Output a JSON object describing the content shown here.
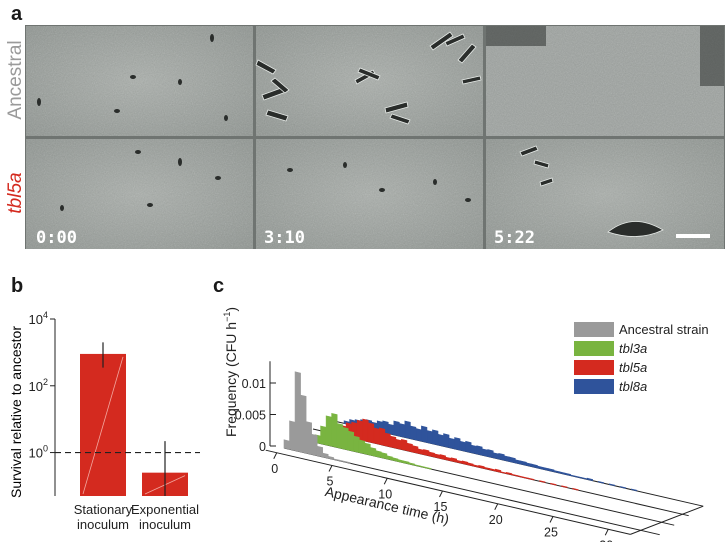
{
  "panel_a": {
    "letter": "a",
    "row_labels": [
      {
        "text": "Ancestral",
        "color": "#9a9a9a"
      },
      {
        "text": "tbl5a",
        "color": "#d42a1f"
      }
    ],
    "time_stamps": [
      "0:00",
      "3:10",
      "5:22"
    ]
  },
  "panel_b": {
    "letter": "b"
  },
  "panel_c": {
    "letter": "c"
  },
  "chart_data": [
    {
      "type": "bar",
      "panel": "b",
      "ylabel": "Survival relative to ancestor",
      "yscale": "log10",
      "ylim": [
        0.05,
        10000
      ],
      "yticks": [
        {
          "base": "10",
          "exp": "0",
          "value": 1
        },
        {
          "base": "10",
          "exp": "2",
          "value": 100
        },
        {
          "base": "10",
          "exp": "4",
          "value": 10000
        }
      ],
      "categories": [
        {
          "line1": "Stationary",
          "line2": "inoculum"
        },
        {
          "line1": "Exponential",
          "line2": "inoculum"
        }
      ],
      "values": [
        900,
        0.25
      ],
      "error_upper": [
        2000,
        2.2
      ],
      "error_lower": [
        350,
        0.05
      ],
      "reference_line": 1,
      "bar_color": "#d42a1f"
    },
    {
      "type": "histogram-3d",
      "panel": "c",
      "ylabel": "Frequency (CFU h",
      "ylabel_sup": "−1",
      "ylabel_close": ")",
      "xlabel": "Appearance time (h)",
      "yticks": [
        "0",
        "0.005",
        "0.01"
      ],
      "xticks": [
        "0",
        "5",
        "10",
        "15",
        "20",
        "25",
        "30"
      ],
      "xlim": [
        0,
        30
      ],
      "legend_position": "top-right",
      "series": [
        {
          "name": "Ancestral strain",
          "italic": false,
          "color": "#9a9a9a",
          "bin_width_h": 0.5,
          "x": [
            0.5,
            1.0,
            1.5,
            2.0,
            2.5,
            3.0,
            3.5,
            4.0,
            4.5,
            5.0,
            5.5,
            6.0
          ],
          "y": [
            0.0013,
            0.0045,
            0.0125,
            0.009,
            0.005,
            0.0032,
            0.0015,
            0.0006,
            0.0003,
            0.0001,
            0.0001,
            0.0001
          ]
        },
        {
          "name": "tbl3a",
          "italic": true,
          "color": "#79b440",
          "bin_width_h": 0.5,
          "x": [
            1.5,
            2.0,
            2.5,
            3.0,
            3.5,
            4.0,
            4.5,
            5.0,
            5.5,
            6.0,
            6.5,
            7.0,
            7.5,
            8.0,
            8.5,
            9.0,
            9.5,
            10.0,
            10.5,
            11.0,
            11.5,
            12.0
          ],
          "y": [
            0.0004,
            0.0012,
            0.0028,
            0.0046,
            0.0052,
            0.0038,
            0.0034,
            0.003,
            0.0024,
            0.002,
            0.0017,
            0.0012,
            0.0009,
            0.0008,
            0.0005,
            0.0004,
            0.0003,
            0.0003,
            0.0002,
            0.0001,
            0.0001,
            0.0001
          ]
        },
        {
          "name": "tbl5a",
          "italic": true,
          "color": "#d42a1f",
          "bin_width_h": 0.5,
          "x": [
            2.5,
            3.0,
            3.5,
            4.0,
            4.5,
            5.0,
            5.5,
            6.0,
            6.5,
            7.0,
            7.5,
            8.0,
            8.5,
            9.0,
            9.5,
            10.0,
            10.5,
            11.0,
            11.5,
            12.0,
            12.5,
            13.0,
            13.5,
            14.0,
            14.5,
            15.0,
            15.5,
            16.0,
            16.5,
            17.0,
            17.5,
            18.0,
            18.5,
            19.0,
            19.5,
            20.0,
            21.0,
            22.0,
            23.0,
            24.0
          ],
          "y": [
            0.0006,
            0.0016,
            0.0022,
            0.0025,
            0.003,
            0.0034,
            0.003,
            0.0024,
            0.0026,
            0.002,
            0.0017,
            0.0014,
            0.0016,
            0.0012,
            0.001,
            0.0007,
            0.0008,
            0.0006,
            0.0005,
            0.0006,
            0.0004,
            0.0005,
            0.0003,
            0.0004,
            0.0003,
            0.0002,
            0.0003,
            0.0002,
            0.0002,
            0.0003,
            0.0001,
            0.0002,
            0.0001,
            0.0001,
            0.0001,
            0.0001,
            0.0001,
            0.0001,
            0.0001,
            0.0001
          ]
        },
        {
          "name": "tbl8a",
          "italic": true,
          "color": "#2f539b",
          "bin_width_h": 0.5,
          "x": [
            2.0,
            2.5,
            3.0,
            3.5,
            4.0,
            4.5,
            5.0,
            5.5,
            6.0,
            6.5,
            7.0,
            7.5,
            8.0,
            8.5,
            9.0,
            9.5,
            10.0,
            10.5,
            11.0,
            11.5,
            12.0,
            12.5,
            13.0,
            13.5,
            14.0,
            14.5,
            15.0,
            15.5,
            16.0,
            16.5,
            17.0,
            17.5,
            18.0,
            18.5,
            19.0,
            19.5,
            20.0,
            20.5,
            21.0,
            21.5,
            22.0,
            22.5,
            23.0,
            23.5,
            24.0,
            25.0,
            26.0,
            27.0,
            28.0
          ],
          "y": [
            0.0004,
            0.0008,
            0.001,
            0.0012,
            0.0014,
            0.0012,
            0.0016,
            0.0018,
            0.0015,
            0.0022,
            0.002,
            0.0026,
            0.002,
            0.0018,
            0.0024,
            0.0019,
            0.0022,
            0.0017,
            0.002,
            0.0015,
            0.0018,
            0.0014,
            0.0016,
            0.0012,
            0.0013,
            0.001,
            0.0011,
            0.0008,
            0.0009,
            0.0007,
            0.0007,
            0.0005,
            0.0005,
            0.0004,
            0.0004,
            0.0003,
            0.0003,
            0.0003,
            0.0002,
            0.0002,
            0.0002,
            0.0001,
            0.0001,
            0.0001,
            0.0002,
            0.0001,
            0.0001,
            0.0001,
            0.0001
          ]
        }
      ]
    }
  ]
}
